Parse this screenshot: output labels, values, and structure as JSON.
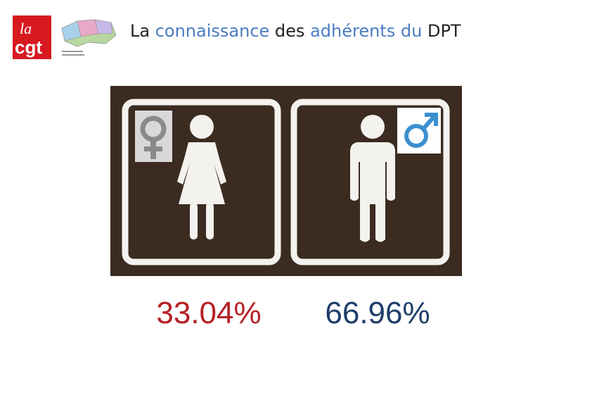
{
  "logo": {
    "line1": "la",
    "line2": "cgt"
  },
  "header": {
    "title_parts": [
      "La",
      "connaissance",
      "des",
      "adhérents",
      "du",
      "DPT"
    ]
  },
  "stats": {
    "women": "33.04%",
    "men": "66.96%"
  }
}
